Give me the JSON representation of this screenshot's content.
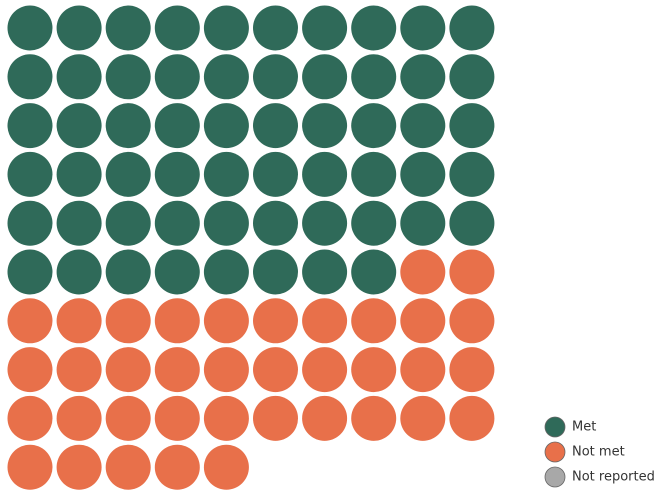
{
  "chart_data": {
    "type": "waffle",
    "columns": 10,
    "series": [
      {
        "name": "Met",
        "color": "#2f6a59",
        "values": [
          58
        ]
      },
      {
        "name": "Not met",
        "color": "#e8704a",
        "values": [
          37
        ]
      },
      {
        "name": "Not reported",
        "color": "#a8a8a8",
        "values": [
          0
        ]
      }
    ]
  }
}
